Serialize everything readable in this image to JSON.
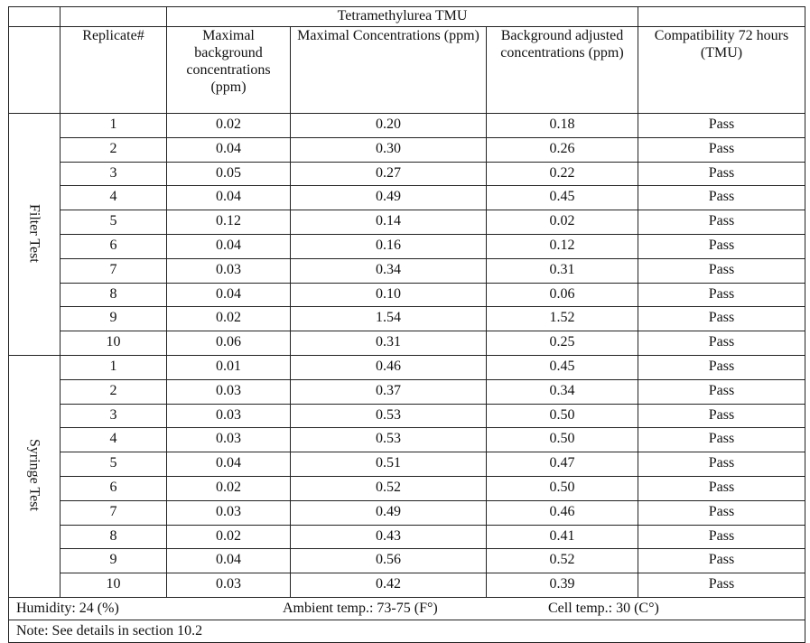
{
  "table": {
    "super_header": "Tetramethylurea TMU",
    "columns": [
      "Replicate#",
      "Maximal background concentrations (ppm)",
      "Maximal Concentrations (ppm)",
      "Background adjusted concentrations (ppm)",
      "Compatibility 72 hours (TMU)"
    ],
    "groups": [
      {
        "label": "Filter Test",
        "rows": [
          [
            "1",
            "0.02",
            "0.20",
            "0.18",
            "Pass"
          ],
          [
            "2",
            "0.04",
            "0.30",
            "0.26",
            "Pass"
          ],
          [
            "3",
            "0.05",
            "0.27",
            "0.22",
            "Pass"
          ],
          [
            "4",
            "0.04",
            "0.49",
            "0.45",
            "Pass"
          ],
          [
            "5",
            "0.12",
            "0.14",
            "0.02",
            "Pass"
          ],
          [
            "6",
            "0.04",
            "0.16",
            "0.12",
            "Pass"
          ],
          [
            "7",
            "0.03",
            "0.34",
            "0.31",
            "Pass"
          ],
          [
            "8",
            "0.04",
            "0.10",
            "0.06",
            "Pass"
          ],
          [
            "9",
            "0.02",
            "1.54",
            "1.52",
            "Pass"
          ],
          [
            "10",
            "0.06",
            "0.31",
            "0.25",
            "Pass"
          ]
        ]
      },
      {
        "label": "Syringe Test",
        "rows": [
          [
            "1",
            "0.01",
            "0.46",
            "0.45",
            "Pass"
          ],
          [
            "2",
            "0.03",
            "0.37",
            "0.34",
            "Pass"
          ],
          [
            "3",
            "0.03",
            "0.53",
            "0.50",
            "Pass"
          ],
          [
            "4",
            "0.03",
            "0.53",
            "0.50",
            "Pass"
          ],
          [
            "5",
            "0.04",
            "0.51",
            "0.47",
            "Pass"
          ],
          [
            "6",
            "0.02",
            "0.52",
            "0.50",
            "Pass"
          ],
          [
            "7",
            "0.03",
            "0.49",
            "0.46",
            "Pass"
          ],
          [
            "8",
            "0.02",
            "0.43",
            "0.41",
            "Pass"
          ],
          [
            "9",
            "0.04",
            "0.56",
            "0.52",
            "Pass"
          ],
          [
            "10",
            "0.03",
            "0.42",
            "0.39",
            "Pass"
          ]
        ]
      }
    ],
    "footer": {
      "humidity": "Humidity: 24 (%)",
      "ambient": "Ambient temp.: 73-75 (F°)",
      "cell": "Cell temp.: 30 (C°)"
    },
    "note": "Note: See details in section 10.2"
  }
}
